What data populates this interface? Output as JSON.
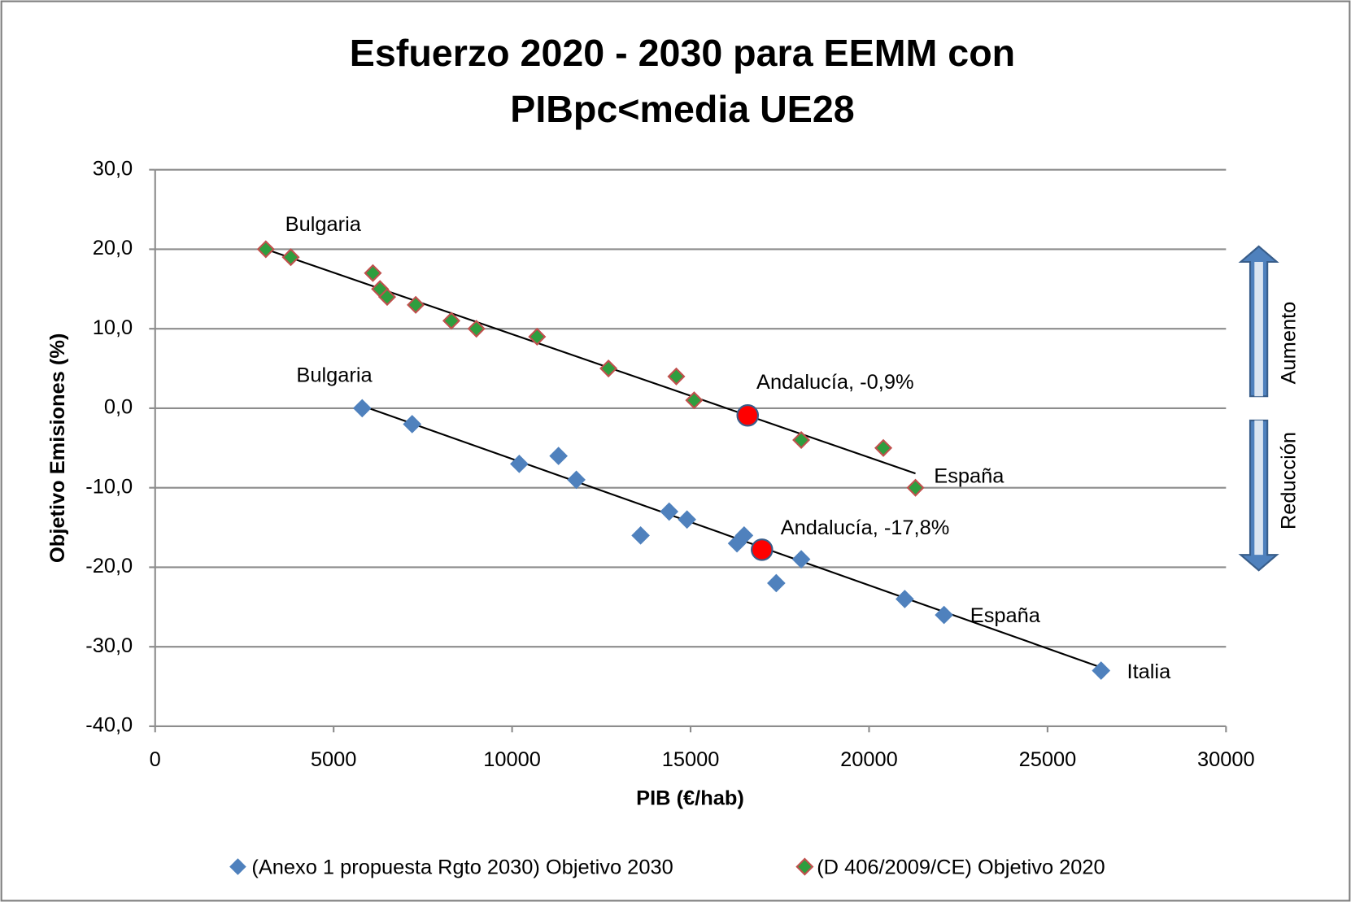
{
  "chart_data": {
    "type": "scatter",
    "title": "Esfuerzo 2020 - 2030 para EEMM con",
    "subtitle": "PIBpc<media UE28",
    "x_label": "PIB (€/hab)",
    "y_label": "Objetivo Emisiones (%)",
    "xlim": [
      0,
      30000
    ],
    "xticks": [
      0,
      5000,
      10000,
      15000,
      20000,
      25000,
      30000
    ],
    "ylim": [
      -40,
      30
    ],
    "yticks": [
      {
        "value": -40,
        "label": "-40,0"
      },
      {
        "value": -30,
        "label": "-30,0"
      },
      {
        "value": -20,
        "label": "-20,0"
      },
      {
        "value": -10,
        "label": "-10,0"
      },
      {
        "value": 0,
        "label": "0,0"
      },
      {
        "value": 10,
        "label": "10,0"
      },
      {
        "value": 20,
        "label": "20,0"
      },
      {
        "value": 30,
        "label": "30,0"
      }
    ],
    "grid": true,
    "legend": "bottom",
    "series": [
      {
        "name": "(Anexo 1 propuesta Rgto 2030) Objetivo 2030",
        "color": "#4f81bd",
        "x": [
          5800,
          7200,
          10200,
          11300,
          11800,
          13600,
          14400,
          14900,
          16300,
          16500,
          17400,
          18100,
          21000,
          22100,
          26500
        ],
        "values": [
          0,
          -2,
          -7,
          -6,
          -9,
          -16,
          -13,
          -14,
          -17,
          -16,
          -22,
          -19,
          -24,
          -26,
          -33
        ],
        "trend_x": [
          5800,
          26500
        ],
        "trend_values": [
          0.3,
          -32.6
        ]
      },
      {
        "name": "(D 406/2009/CE) Objetivo 2020",
        "color": "#2e9e3e",
        "edge_color": "#c0504d",
        "x": [
          3100,
          3800,
          6100,
          6300,
          6500,
          7300,
          8300,
          9000,
          10700,
          12700,
          14600,
          15100,
          18100,
          20400,
          21300
        ],
        "values": [
          20,
          19,
          17,
          15,
          14,
          13,
          11,
          10,
          9,
          5,
          4,
          1,
          -4,
          -5,
          -10
        ],
        "trend_x": [
          3100,
          21300
        ],
        "trend_values": [
          20,
          -8.2
        ]
      }
    ],
    "highlights": [
      {
        "x": 16600,
        "y": -0.9,
        "label": "Andalucía, -0,9%",
        "color": "#ff0000"
      },
      {
        "x": 17000,
        "y": -17.8,
        "label": "Andalucía, -17,8%",
        "color": "#ff0000"
      }
    ],
    "annotations": [
      "Bulgaria",
      "Bulgaria",
      "España",
      "España",
      "Italia"
    ],
    "arrow_labels": [
      "Aumento",
      "Reducción"
    ]
  }
}
